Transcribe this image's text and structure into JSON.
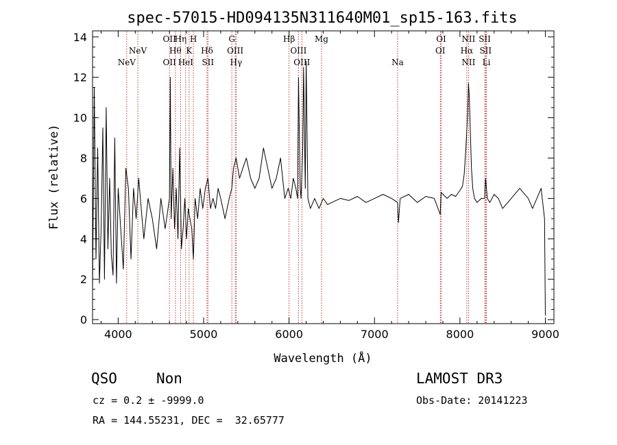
{
  "chart_data": {
    "type": "line",
    "title": "spec-57015-HD094135N311640M01_sp15-163.fits",
    "xlabel": "Wavelength (Å)",
    "ylabel": "Flux (relative)",
    "xlim": [
      3700,
      9100
    ],
    "ylim": [
      -0.2,
      14.3
    ],
    "xticks": [
      4000,
      5000,
      6000,
      7000,
      8000,
      9000
    ],
    "yticks": [
      0,
      2,
      4,
      6,
      8,
      10,
      12,
      14
    ],
    "grid": false,
    "spectrum": {
      "x": [
        3700,
        3720,
        3740,
        3760,
        3780,
        3800,
        3820,
        3840,
        3860,
        3880,
        3900,
        3920,
        3940,
        3960,
        3980,
        4000,
        4030,
        4060,
        4090,
        4120,
        4150,
        4180,
        4210,
        4240,
        4270,
        4300,
        4350,
        4400,
        4450,
        4500,
        4550,
        4600,
        4610,
        4620,
        4640,
        4660,
        4680,
        4700,
        4720,
        4740,
        4760,
        4780,
        4800,
        4820,
        4840,
        4861,
        4880,
        4900,
        4930,
        4960,
        4990,
        5020,
        5050,
        5080,
        5110,
        5140,
        5170,
        5200,
        5250,
        5300,
        5330,
        5350,
        5380,
        5420,
        5460,
        5500,
        5550,
        5600,
        5650,
        5700,
        5750,
        5800,
        5850,
        5900,
        5950,
        5990,
        6020,
        6050,
        6080,
        6100,
        6110,
        6130,
        6140,
        6160,
        6170,
        6190,
        6200,
        6220,
        6250,
        6300,
        6350,
        6400,
        6450,
        6500,
        6600,
        6700,
        6800,
        6900,
        7000,
        7100,
        7200,
        7270,
        7280,
        7300,
        7400,
        7500,
        7600,
        7700,
        7770,
        7780,
        7850,
        7900,
        7950,
        8000,
        8030,
        8050,
        8070,
        8090,
        8100,
        8110,
        8120,
        8135,
        8150,
        8170,
        8200,
        8250,
        8290,
        8300,
        8320,
        8350,
        8400,
        8450,
        8500,
        8600,
        8700,
        8800,
        8850,
        8900,
        8950,
        8990,
        9000
      ],
      "y": [
        1.5,
        11.5,
        3.0,
        8.5,
        1.8,
        4.5,
        9.5,
        2.0,
        10.5,
        3.5,
        7.0,
        3.2,
        2.2,
        9.0,
        1.8,
        6.5,
        4.5,
        2.5,
        7.5,
        6.5,
        3.0,
        6.5,
        5.0,
        7.0,
        5.5,
        4.0,
        6.0,
        5.0,
        3.5,
        6.0,
        4.5,
        6.0,
        12.0,
        5.0,
        7.5,
        4.5,
        6.5,
        4.0,
        8.5,
        3.5,
        4.5,
        6.0,
        4.0,
        5.5,
        5.0,
        4.5,
        3.0,
        6.0,
        5.0,
        6.5,
        5.5,
        6.5,
        7.0,
        5.5,
        6.0,
        5.5,
        6.5,
        6.0,
        5.0,
        6.0,
        6.5,
        7.5,
        8.0,
        7.0,
        7.5,
        8.0,
        7.0,
        6.5,
        7.0,
        8.5,
        7.5,
        6.5,
        7.0,
        8.0,
        6.0,
        6.5,
        6.0,
        7.0,
        6.5,
        6.0,
        12.0,
        6.5,
        6.0,
        8.5,
        12.5,
        6.5,
        12.8,
        6.0,
        5.5,
        6.0,
        5.5,
        6.0,
        5.7,
        5.8,
        6.0,
        5.9,
        6.1,
        5.8,
        6.0,
        6.2,
        6.0,
        5.8,
        4.8,
        6.0,
        6.2,
        5.8,
        6.1,
        6.0,
        5.2,
        6.3,
        6.0,
        6.2,
        6.1,
        6.4,
        6.6,
        7.2,
        8.5,
        10.2,
        11.7,
        11.0,
        9.5,
        7.5,
        6.5,
        6.0,
        5.8,
        6.0,
        6.0,
        7.0,
        6.0,
        5.8,
        6.2,
        6.0,
        5.5,
        6.0,
        6.5,
        6.0,
        5.5,
        6.0,
        6.5,
        5.0,
        0.2
      ]
    },
    "line_markers": [
      {
        "label": "NeV",
        "x": 4100,
        "row": 2
      },
      {
        "label": "NeV",
        "x": 4230,
        "row": 1
      },
      {
        "label": "OII",
        "x": 4600,
        "row": 0
      },
      {
        "label": "OII",
        "x": 4600,
        "row": 2
      },
      {
        "label": "Hθ",
        "x": 4670,
        "row": 1
      },
      {
        "label": "Hη",
        "x": 4730,
        "row": 0
      },
      {
        "label": "HeI",
        "x": 4790,
        "row": 2
      },
      {
        "label": "K",
        "x": 4830,
        "row": 1
      },
      {
        "label": "H",
        "x": 4880,
        "row": 0
      },
      {
        "label": "Hδ",
        "x": 5040,
        "row": 1
      },
      {
        "label": "SII",
        "x": 5050,
        "row": 2
      },
      {
        "label": "G",
        "x": 5330,
        "row": 0
      },
      {
        "label": "OIII",
        "x": 5370,
        "row": 1
      },
      {
        "label": "Hγ",
        "x": 5380,
        "row": 2
      },
      {
        "label": "Hβ",
        "x": 6000,
        "row": 0
      },
      {
        "label": "OIII",
        "x": 6110,
        "row": 1
      },
      {
        "label": "OIII",
        "x": 6150,
        "row": 2
      },
      {
        "label": "Mg",
        "x": 6380,
        "row": 0
      },
      {
        "label": "Na",
        "x": 7270,
        "row": 2
      },
      {
        "label": "OI",
        "x": 7780,
        "row": 0
      },
      {
        "label": "OI",
        "x": 7770,
        "row": 1
      },
      {
        "label": "NII",
        "x": 8100,
        "row": 0
      },
      {
        "label": "Hα",
        "x": 8080,
        "row": 1
      },
      {
        "label": "NII",
        "x": 8100,
        "row": 2
      },
      {
        "label": "SII",
        "x": 8290,
        "row": 0
      },
      {
        "label": "SII",
        "x": 8300,
        "row": 1
      },
      {
        "label": "Li",
        "x": 8310,
        "row": 2
      }
    ]
  },
  "info": {
    "class": "QSO",
    "subclass": "Non",
    "survey": "LAMOST DR3",
    "cz": "cz = 0.2 ± -9999.0",
    "obs_date": "Obs-Date: 20141223",
    "coords": "RA = 144.55231, DEC =  32.65777"
  },
  "colors": {
    "spectrum": "#000000",
    "marker_line": "#b00000",
    "axes": "#000000"
  }
}
